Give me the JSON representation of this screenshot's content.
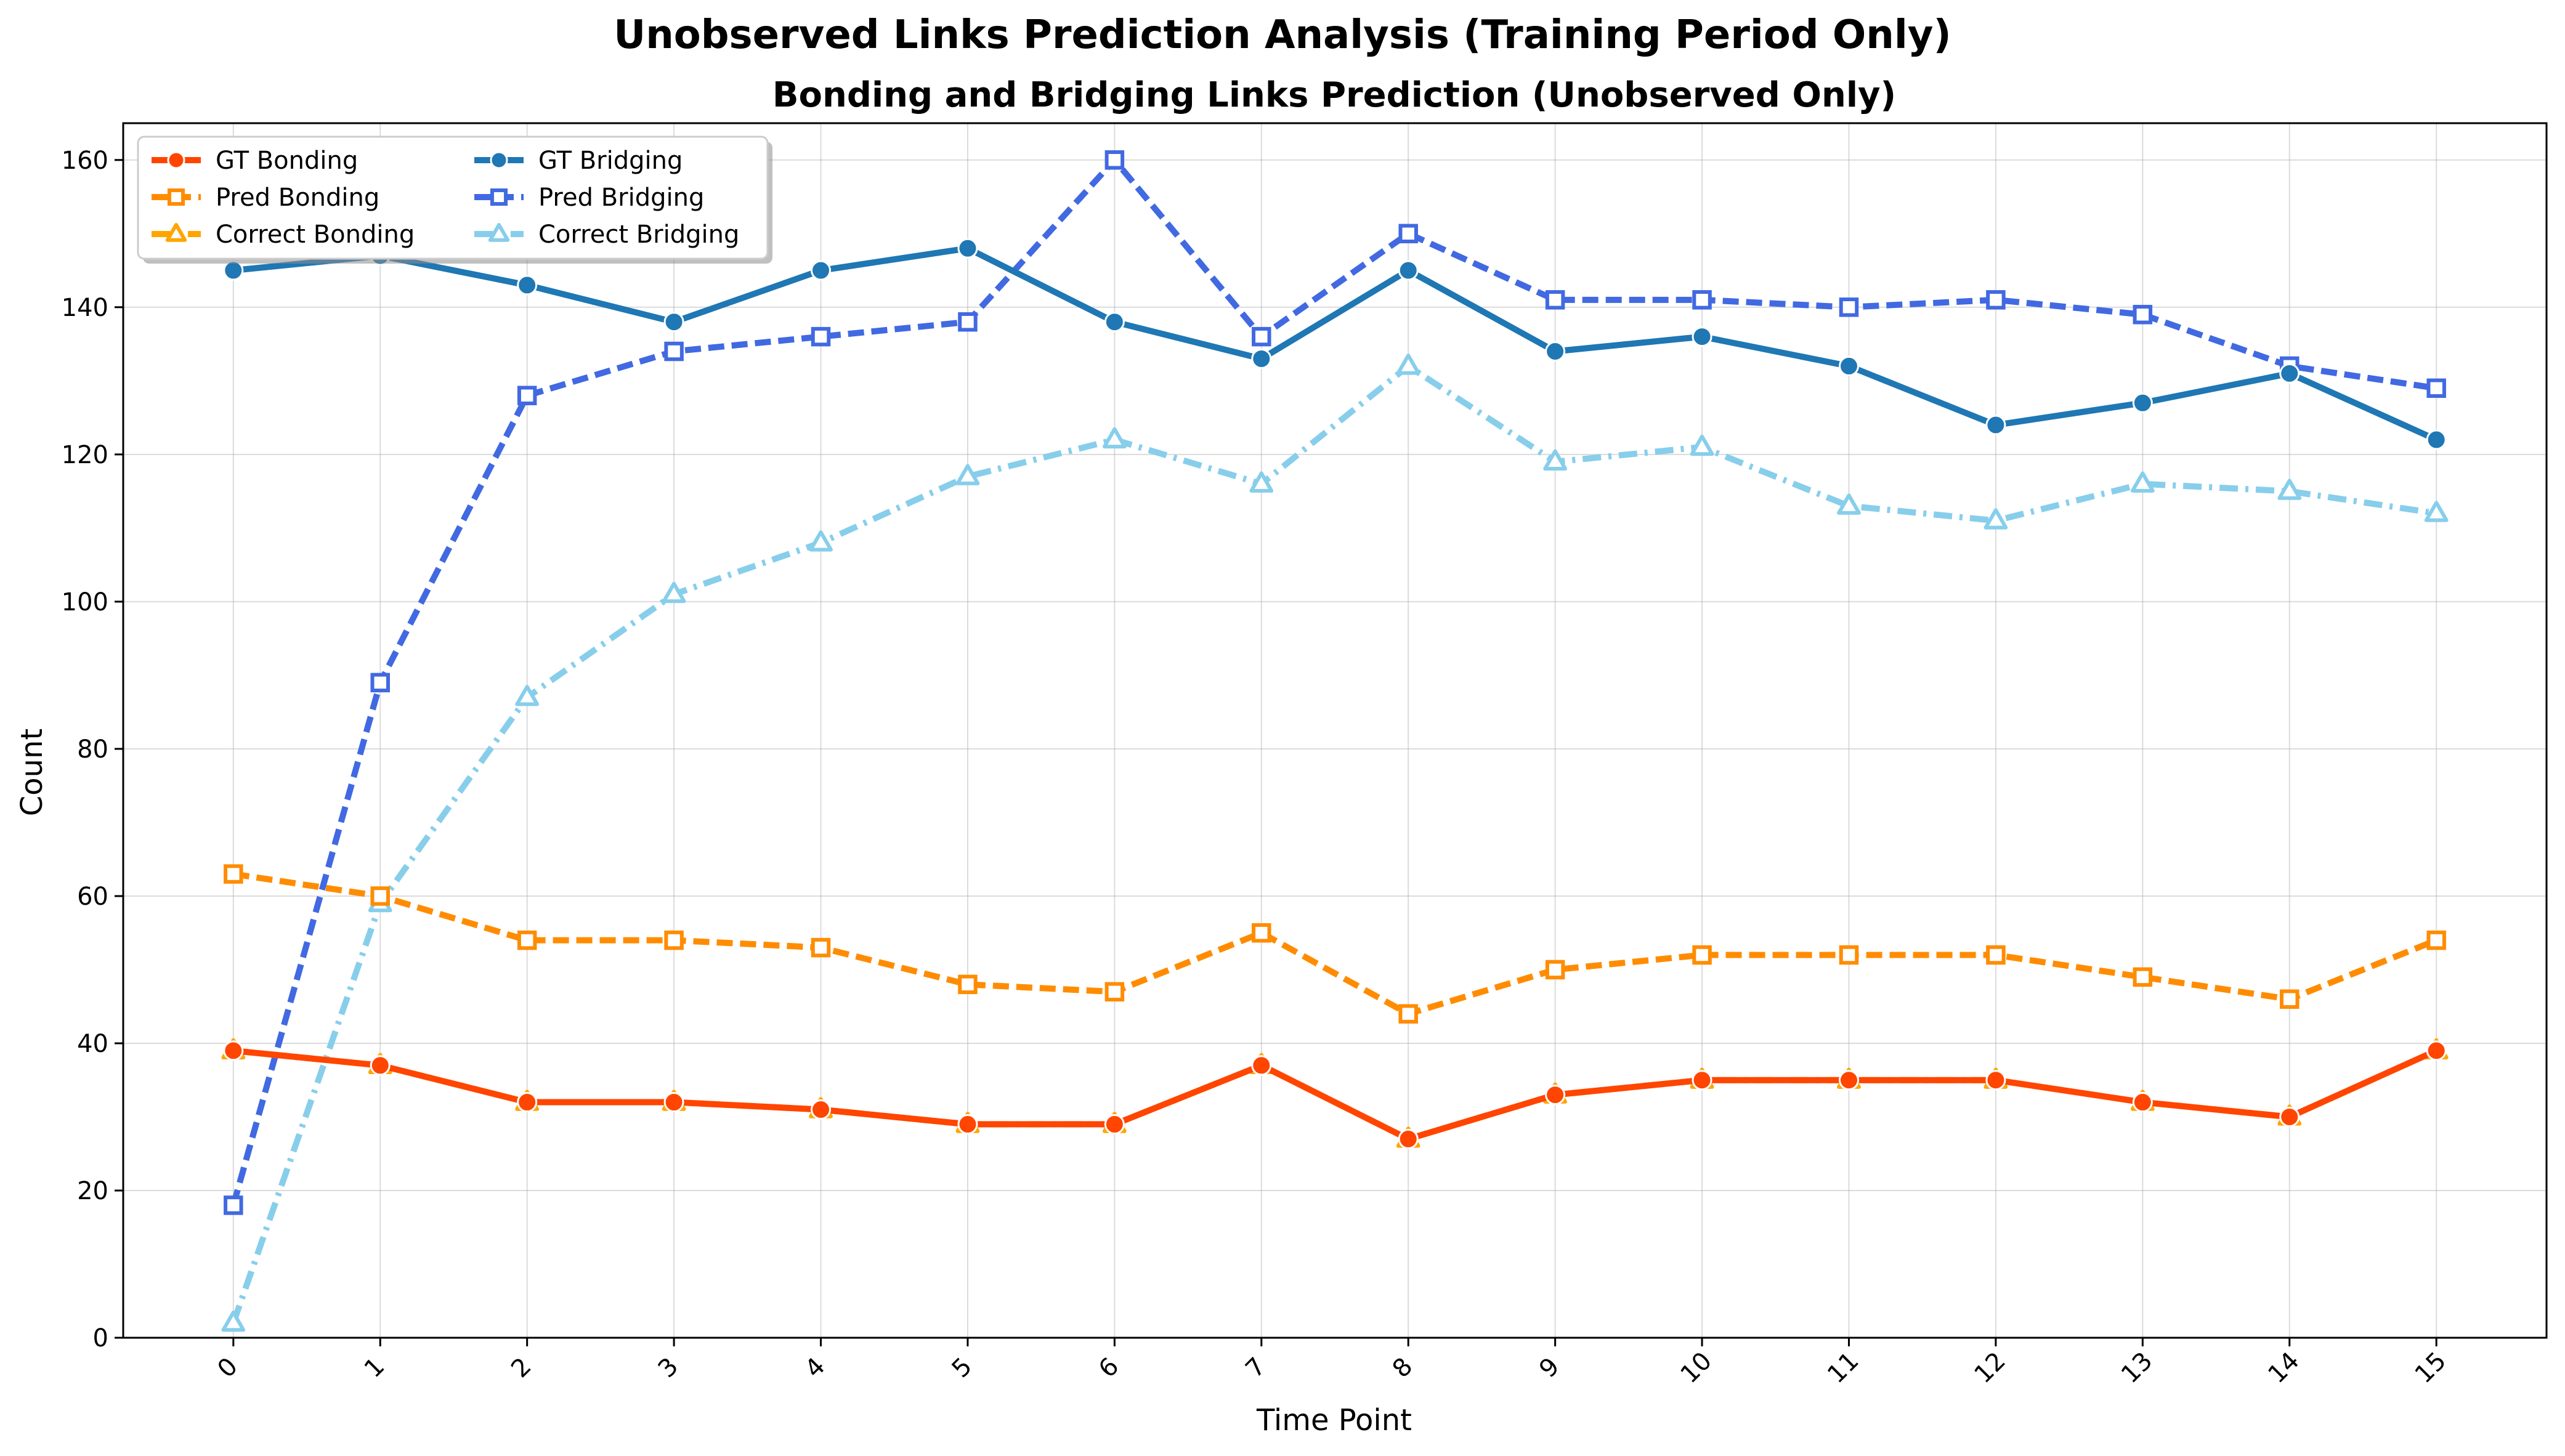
{
  "figure": {
    "suptitle": "Unobserved Links Prediction Analysis (Training Period Only)"
  },
  "chart_data": {
    "type": "line",
    "title": "Bonding and Bridging Links Prediction (Unobserved Only)",
    "xlabel": "Time Point",
    "ylabel": "Count",
    "x": [
      0,
      1,
      2,
      3,
      4,
      5,
      6,
      7,
      8,
      9,
      10,
      11,
      12,
      13,
      14,
      15
    ],
    "x_tick_labels": [
      "0",
      "1",
      "2",
      "3",
      "4",
      "5",
      "6",
      "7",
      "8",
      "9",
      "10",
      "11",
      "12",
      "13",
      "14",
      "15"
    ],
    "xlim": [
      -0.75,
      15.75
    ],
    "ylim": [
      0,
      165
    ],
    "y_ticks": [
      0,
      20,
      40,
      60,
      80,
      100,
      120,
      140,
      160
    ],
    "grid": true,
    "legend_position": "top-left",
    "legend_columns": 2,
    "series": [
      {
        "name": "GT Bonding",
        "color": "#ff4500",
        "line_style": "solid",
        "marker": "circle",
        "values": [
          39,
          37,
          32,
          32,
          31,
          29,
          29,
          37,
          27,
          33,
          35,
          35,
          35,
          32,
          30,
          39
        ]
      },
      {
        "name": "Pred Bonding",
        "color": "#ff8c00",
        "line_style": "dashed",
        "marker": "square",
        "values": [
          63,
          60,
          54,
          54,
          53,
          48,
          47,
          55,
          44,
          50,
          52,
          52,
          52,
          49,
          46,
          54
        ]
      },
      {
        "name": "Correct Bonding",
        "color": "#ffa500",
        "line_style": "dashdot",
        "marker": "triangle",
        "values": [
          39,
          37,
          32,
          32,
          31,
          29,
          29,
          37,
          27,
          33,
          35,
          35,
          35,
          32,
          30,
          39
        ]
      },
      {
        "name": "GT Bridging",
        "color": "#1f77b4",
        "line_style": "solid",
        "marker": "circle",
        "values": [
          145,
          147,
          143,
          138,
          145,
          148,
          138,
          133,
          145,
          134,
          136,
          132,
          124,
          127,
          131,
          122
        ]
      },
      {
        "name": "Pred Bridging",
        "color": "#4169e1",
        "line_style": "dashed",
        "marker": "square",
        "values": [
          18,
          89,
          128,
          134,
          136,
          138,
          160,
          136,
          150,
          141,
          141,
          140,
          141,
          139,
          132,
          129
        ]
      },
      {
        "name": "Correct Bridging",
        "color": "#87ceeb",
        "line_style": "dashdot",
        "marker": "triangle",
        "values": [
          2,
          59,
          87,
          101,
          108,
          117,
          122,
          116,
          132,
          119,
          121,
          113,
          111,
          116,
          115,
          112
        ]
      }
    ]
  }
}
